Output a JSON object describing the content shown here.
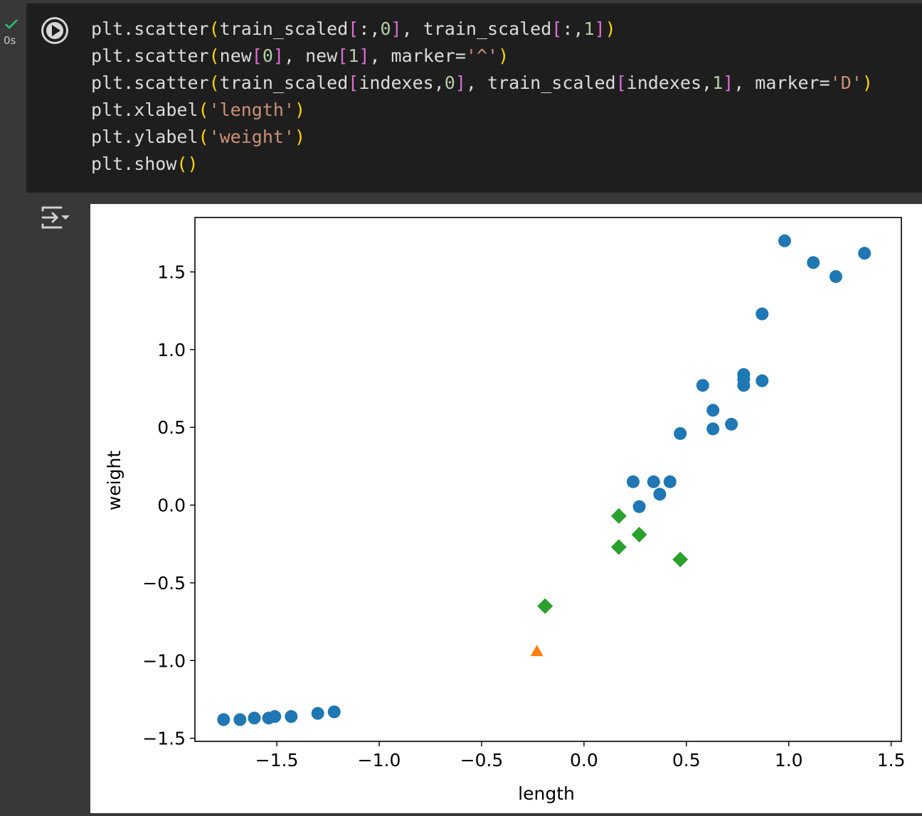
{
  "cell": {
    "status_icon": "check-icon",
    "exec_time": "0s",
    "run_icon": "play-icon",
    "output_toggle_icon": "collapse-output-icon",
    "code_lines": [
      [
        [
          "fn",
          "plt.scatter"
        ],
        [
          "br1",
          "("
        ],
        [
          "fn",
          "train_scaled"
        ],
        [
          "br2",
          "["
        ],
        [
          "fn",
          ":,"
        ],
        [
          "num",
          "0"
        ],
        [
          "br2",
          "]"
        ],
        [
          "fn",
          ", train_scaled"
        ],
        [
          "br2",
          "["
        ],
        [
          "fn",
          ":,"
        ],
        [
          "num",
          "1"
        ],
        [
          "br2",
          "]"
        ],
        [
          "br1",
          ")"
        ]
      ],
      [
        [
          "fn",
          "plt.scatter"
        ],
        [
          "br1",
          "("
        ],
        [
          "fn",
          "new"
        ],
        [
          "br2",
          "["
        ],
        [
          "num",
          "0"
        ],
        [
          "br2",
          "]"
        ],
        [
          "fn",
          ", new"
        ],
        [
          "br2",
          "["
        ],
        [
          "num",
          "1"
        ],
        [
          "br2",
          "]"
        ],
        [
          "fn",
          ", marker="
        ],
        [
          "str",
          "'^'"
        ],
        [
          "br1",
          ")"
        ]
      ],
      [
        [
          "fn",
          "plt.scatter"
        ],
        [
          "br1",
          "("
        ],
        [
          "fn",
          "train_scaled"
        ],
        [
          "br2",
          "["
        ],
        [
          "fn",
          "indexes,"
        ],
        [
          "num",
          "0"
        ],
        [
          "br2",
          "]"
        ],
        [
          "fn",
          ", train_scaled"
        ],
        [
          "br2",
          "["
        ],
        [
          "fn",
          "indexes,"
        ],
        [
          "num",
          "1"
        ],
        [
          "br2",
          "]"
        ],
        [
          "fn",
          ", marker="
        ],
        [
          "str",
          "'D'"
        ],
        [
          "br1",
          ")"
        ]
      ],
      [
        [
          "fn",
          "plt.xlabel"
        ],
        [
          "br1",
          "("
        ],
        [
          "str",
          "'length'"
        ],
        [
          "br1",
          ")"
        ]
      ],
      [
        [
          "fn",
          "plt.ylabel"
        ],
        [
          "br1",
          "("
        ],
        [
          "str",
          "'weight'"
        ],
        [
          "br1",
          ")"
        ]
      ],
      [
        [
          "fn",
          "plt.show"
        ],
        [
          "br1",
          "()"
        ]
      ]
    ]
  },
  "chart_data": {
    "type": "scatter",
    "xlabel": "length",
    "ylabel": "weight",
    "xlim": [
      -1.9,
      1.55
    ],
    "ylim": [
      -1.52,
      1.85
    ],
    "xticks": [
      -1.5,
      -1.0,
      -0.5,
      0.0,
      0.5,
      1.0,
      1.5
    ],
    "yticks": [
      -1.5,
      -1.0,
      -0.5,
      0.0,
      0.5,
      1.0,
      1.5
    ],
    "xtick_labels": [
      "−1.5",
      "−1.0",
      "−0.5",
      "0.0",
      "0.5",
      "1.0",
      "1.5"
    ],
    "ytick_labels": [
      "−1.5",
      "−1.0",
      "−0.5",
      "0.0",
      "0.5",
      "1.0",
      "1.5"
    ],
    "grid": false,
    "series": [
      {
        "marker": "circle",
        "color": "#1f77b4",
        "points": [
          [
            -1.76,
            -1.38
          ],
          [
            -1.68,
            -1.38
          ],
          [
            -1.61,
            -1.37
          ],
          [
            -1.54,
            -1.37
          ],
          [
            -1.51,
            -1.36
          ],
          [
            -1.43,
            -1.36
          ],
          [
            -1.3,
            -1.34
          ],
          [
            -1.22,
            -1.33
          ],
          [
            0.24,
            0.15
          ],
          [
            0.27,
            -0.01
          ],
          [
            0.34,
            0.15
          ],
          [
            0.37,
            0.07
          ],
          [
            0.42,
            0.15
          ],
          [
            0.47,
            0.46
          ],
          [
            0.58,
            0.77
          ],
          [
            0.63,
            0.61
          ],
          [
            0.63,
            0.49
          ],
          [
            0.72,
            0.52
          ],
          [
            0.78,
            0.84
          ],
          [
            0.78,
            0.81
          ],
          [
            0.78,
            0.77
          ],
          [
            0.87,
            0.8
          ],
          [
            0.87,
            1.23
          ],
          [
            0.98,
            1.7
          ],
          [
            1.12,
            1.56
          ],
          [
            1.23,
            1.47
          ],
          [
            1.37,
            1.62
          ]
        ]
      },
      {
        "marker": "triangle",
        "color": "#ff7f0e",
        "points": [
          [
            -0.23,
            -0.94
          ]
        ]
      },
      {
        "marker": "diamond",
        "color": "#2ca02c",
        "points": [
          [
            -0.19,
            -0.65
          ],
          [
            0.17,
            -0.07
          ],
          [
            0.17,
            -0.27
          ],
          [
            0.27,
            -0.19
          ],
          [
            0.47,
            -0.35
          ]
        ]
      }
    ]
  }
}
